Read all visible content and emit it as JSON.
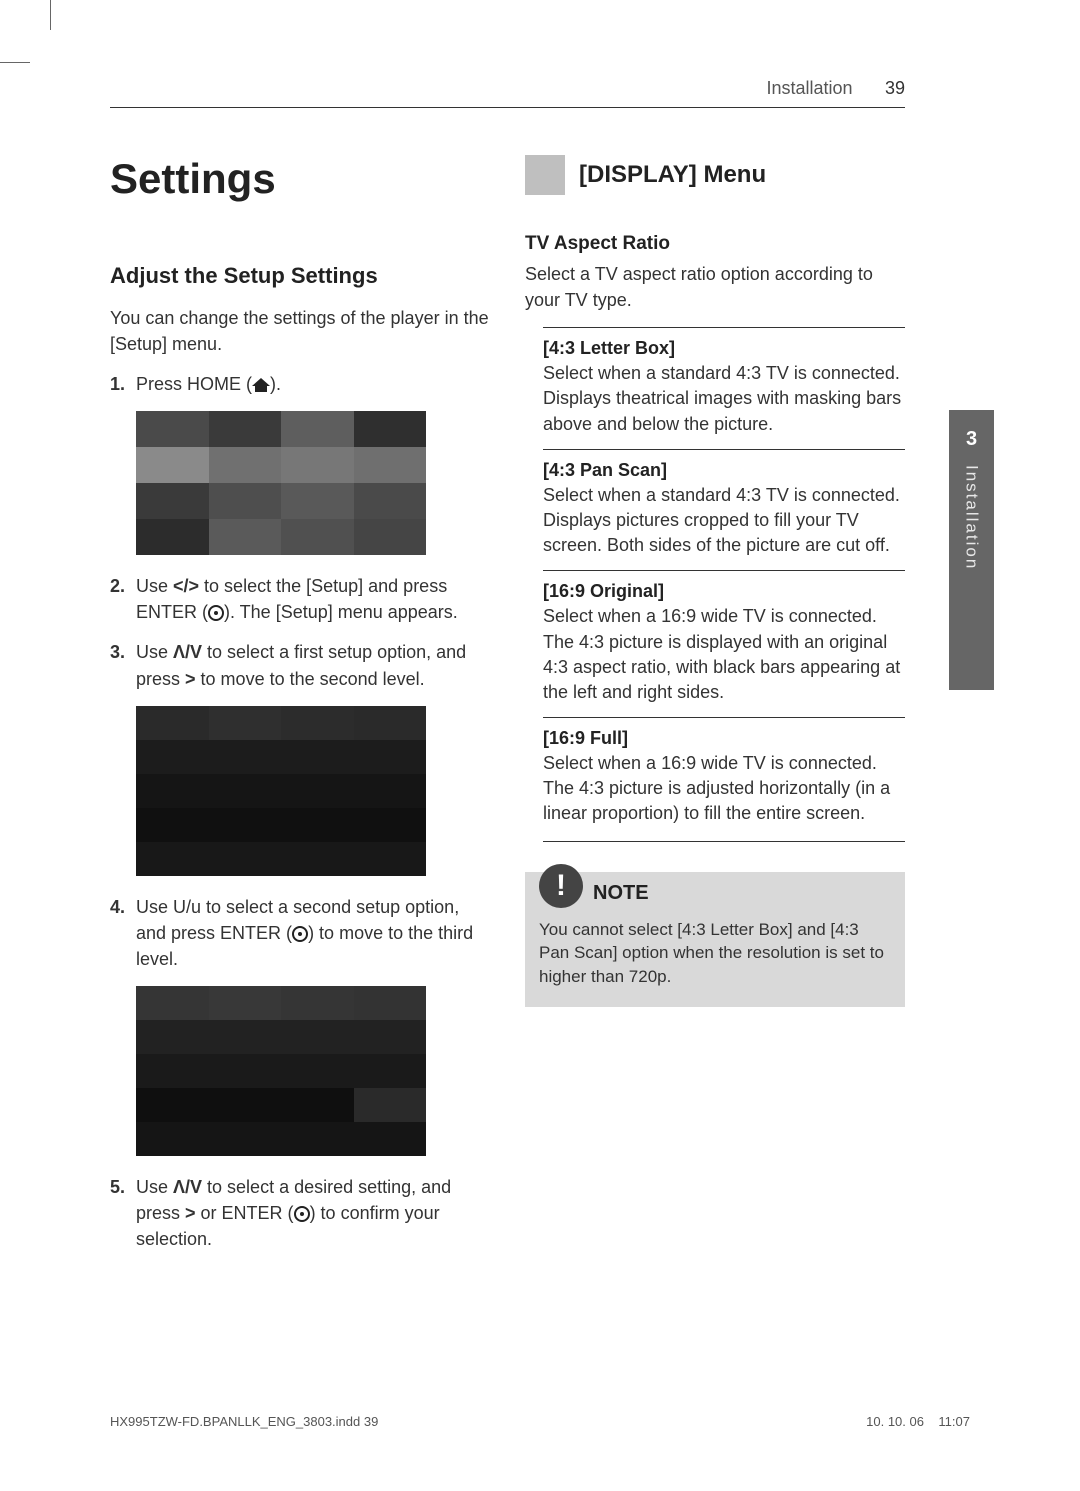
{
  "header": {
    "section": "Installation",
    "page_number": "39"
  },
  "left": {
    "title": "Settings",
    "subheading": "Adjust the Setup Settings",
    "intro": "You can change the settings of the player in the [Setup] menu.",
    "steps": {
      "s1_num": "1.",
      "s1_a": "Press HOME (",
      "s1_b": ").",
      "s2_num": "2.",
      "s2_a": "Use ",
      "s2_arrows": "</>",
      "s2_b": " to select the [Setup] and press ENTER (",
      "s2_c": "). The [Setup] menu appears.",
      "s3_num": "3.",
      "s3_a": "Use ",
      "s3_arrows": "Λ/V",
      "s3_b": " to select a first setup option, and press ",
      "s3_gt": ">",
      "s3_c": " to move to the second level.",
      "s4_num": "4.",
      "s4_a": "Use U/u to select a second setup option, and press ENTER (",
      "s4_b": ") to move to the third level.",
      "s5_num": "5.",
      "s5_a": "Use ",
      "s5_arrows": "Λ/V",
      "s5_b": " to select a desired setting, and press ",
      "s5_gt": ">",
      "s5_c": " or ENTER (",
      "s5_d": ") to confirm your selection."
    },
    "screenshot1": {
      "rows": [
        [
          "#4a4a4a",
          "#3a3a3a",
          "#5e5e5e",
          "#2f2f2f"
        ],
        [
          "#8a8a8a",
          "#707070",
          "#777777",
          "#6f6f6f"
        ],
        [
          "#3a3a3a",
          "#4e4e4e",
          "#595959",
          "#4a4a4a"
        ],
        [
          "#2c2c2c",
          "#5a5a5a",
          "#505050",
          "#454545"
        ]
      ]
    },
    "screenshot2": {
      "rows": [
        [
          "#2a2a2a",
          "#2f2f2f",
          "#2c2c2c",
          "#2a2a2a"
        ],
        [
          "#1c1c1c",
          "#1c1c1c",
          "#1c1c1c",
          "#1c1c1c"
        ],
        [
          "#151515",
          "#151515",
          "#151515",
          "#151515"
        ],
        [
          "#101010",
          "#101010",
          "#101010",
          "#101010"
        ],
        [
          "#181818",
          "#181818",
          "#181818",
          "#181818"
        ]
      ]
    },
    "screenshot3": {
      "rows": [
        [
          "#353535",
          "#383838",
          "#353535",
          "#333333"
        ],
        [
          "#222222",
          "#222222",
          "#222222",
          "#222222"
        ],
        [
          "#1a1a1a",
          "#1a1a1a",
          "#1a1a1a",
          "#1a1a1a"
        ],
        [
          "#0f0f0f",
          "#0f0f0f",
          "#0f0f0f",
          "#2a2a2a"
        ],
        [
          "#151515",
          "#151515",
          "#151515",
          "#151515"
        ]
      ]
    }
  },
  "right": {
    "section_title": "[DISPLAY] Menu",
    "tv_heading": "TV Aspect Ratio",
    "tv_desc": "Select a TV aspect ratio option according to your TV type.",
    "options": [
      {
        "title": "[4:3 Letter Box]",
        "desc": "Select when a standard 4:3 TV is connected. Displays theatrical images with masking bars above and below the picture."
      },
      {
        "title": "[4:3 Pan Scan]",
        "desc": "Select when a standard 4:3 TV is connected. Displays pictures cropped to fill your TV screen. Both sides of the picture are cut off."
      },
      {
        "title": "[16:9 Original]",
        "desc": "Select when a 16:9 wide TV is connected. The 4:3 picture is displayed with an original 4:3 aspect ratio, with black bars appearing at the left and right sides."
      },
      {
        "title": "[16:9 Full]",
        "desc": "Select when a 16:9 wide TV is connected. The 4:3 picture is adjusted horizontally (in a linear proportion) to fill the entire screen."
      }
    ],
    "note_label": "NOTE",
    "note_text": "You cannot select [4:3 Letter Box] and [4:3 Pan Scan] option when the resolution is set to higher than 720p."
  },
  "side_tab": {
    "chapter": "3",
    "label": "Installation"
  },
  "footer": {
    "file": "HX995TZW-FD.BPANLLK_ENG_3803.indd   39",
    "date": "10. 10. 06",
    "time": "11:07"
  }
}
